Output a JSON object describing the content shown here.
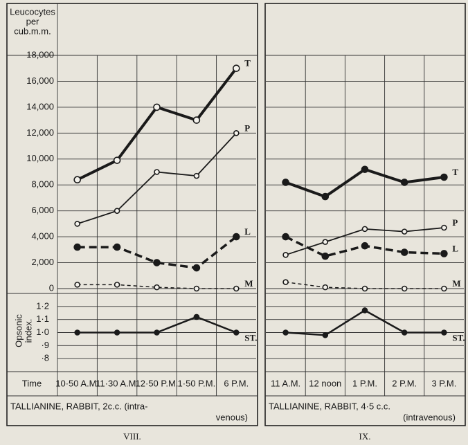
{
  "chart_data": [
    {
      "type": "line",
      "title": "VIII.",
      "caption": [
        "TALLIANINE, RABBIT, 2c.c. (intra-",
        "venous)"
      ],
      "ylabel": [
        "Leucocytes",
        "per",
        "cub.m.m."
      ],
      "y2label": [
        "Opsonic",
        "index."
      ],
      "xlabel": "Time",
      "categories": [
        "10·50 A.M.",
        "11·30 A.M.",
        "12·50 P.M.",
        "1·50 P.M.",
        "6 P.M."
      ],
      "ylim": [
        0,
        18000
      ],
      "yticks": [
        {
          "value": 18000,
          "label": "18,000"
        },
        {
          "value": 16000,
          "label": "16,000"
        },
        {
          "value": 14000,
          "label": "14,000"
        },
        {
          "value": 12000,
          "label": "12,000"
        },
        {
          "value": 10000,
          "label": "10,000"
        },
        {
          "value": 8000,
          "label": "8,000"
        },
        {
          "value": 6000,
          "label": "6,000"
        },
        {
          "value": 4000,
          "label": "4,000"
        },
        {
          "value": 2000,
          "label": "2,000"
        },
        0
      ],
      "y2lim": [
        0.7,
        1.3
      ],
      "y2ticks": [
        {
          "value": 1.2,
          "label": "1·2"
        },
        {
          "value": 1.1,
          "label": "1·1"
        },
        {
          "value": 1.0,
          "label": "1·0"
        },
        {
          "value": 0.9,
          "label": "·9"
        },
        {
          "value": 0.8,
          "label": "·8"
        }
      ],
      "series": [
        {
          "name": "T",
          "color": "#1a1a1a",
          "width": 4,
          "dash": "none",
          "marker": "hollow",
          "values": [
            8400,
            9900,
            14000,
            13000,
            17000
          ]
        },
        {
          "name": "P",
          "color": "#1a1a1a",
          "width": 1.8,
          "dash": "none",
          "marker": "hollow",
          "values": [
            5000,
            6000,
            9000,
            8700,
            12000
          ]
        },
        {
          "name": "L",
          "color": "#1a1a1a",
          "width": 3.5,
          "dash": "11,6",
          "marker": "filled",
          "values": [
            3200,
            3200,
            2000,
            1600,
            4000
          ]
        },
        {
          "name": "M",
          "color": "#1a1a1a",
          "width": 1.5,
          "dash": "5,4",
          "marker": "hollow",
          "values": [
            300,
            300,
            100,
            0,
            0
          ]
        },
        {
          "name": "ST.",
          "color": "#1a1a1a",
          "width": 2.5,
          "dash": "none",
          "marker": "filled",
          "axis": "y2",
          "values": [
            1.0,
            1.0,
            1.0,
            1.12,
            1.0
          ]
        }
      ]
    },
    {
      "type": "line",
      "title": "IX.",
      "caption": [
        "TALLIANINE, RABBIT, 4·5 c.c.",
        "(intravenous)"
      ],
      "categories": [
        "11 A.M.",
        "12 noon",
        "1 P.M.",
        "2 P.M.",
        "3 P.M."
      ],
      "ylim": [
        0,
        18000
      ],
      "y2lim": [
        0.7,
        1.3
      ],
      "series": [
        {
          "name": "T",
          "color": "#1a1a1a",
          "width": 4,
          "dash": "none",
          "marker": "filled",
          "values": [
            8200,
            7100,
            9200,
            8200,
            8600
          ]
        },
        {
          "name": "P",
          "color": "#1a1a1a",
          "width": 1.8,
          "dash": "none",
          "marker": "hollow",
          "values": [
            2600,
            3600,
            4600,
            4400,
            4700
          ]
        },
        {
          "name": "L",
          "color": "#1a1a1a",
          "width": 3.5,
          "dash": "11,6",
          "marker": "filled",
          "values": [
            4000,
            2500,
            3300,
            2800,
            2700
          ]
        },
        {
          "name": "M",
          "color": "#1a1a1a",
          "width": 1.5,
          "dash": "5,4",
          "marker": "hollow",
          "values": [
            500,
            100,
            0,
            0,
            0
          ]
        },
        {
          "name": "ST.",
          "color": "#1a1a1a",
          "width": 2.5,
          "dash": "none",
          "marker": "filled",
          "axis": "y2",
          "values": [
            1.0,
            0.98,
            1.17,
            1.0,
            1.0
          ]
        }
      ]
    }
  ]
}
